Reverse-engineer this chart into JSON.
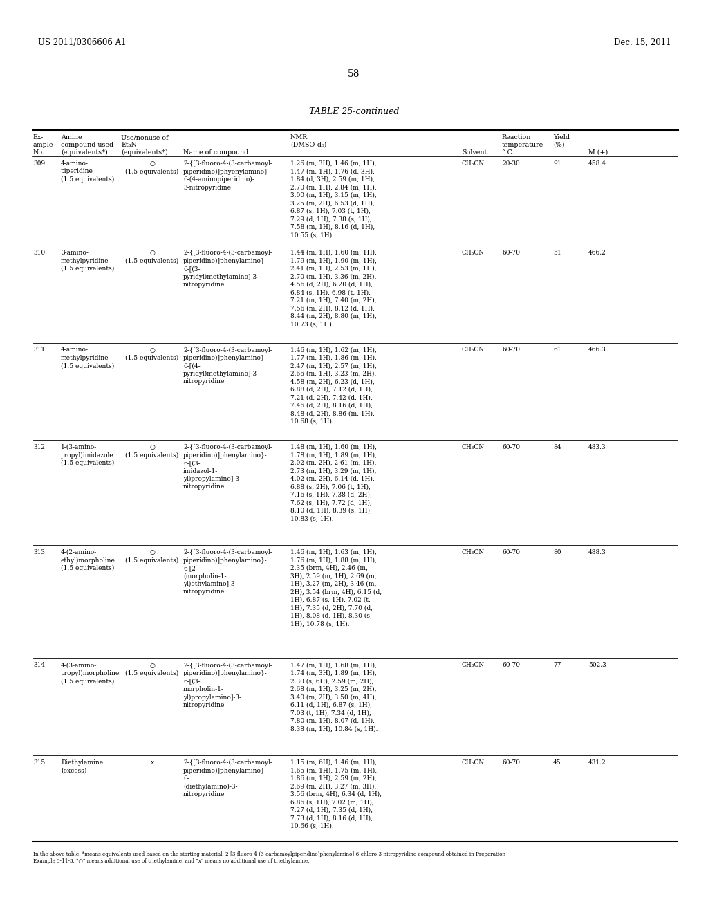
{
  "header_left": "US 2011/0306606 A1",
  "header_right": "Dec. 15, 2011",
  "page_number": "58",
  "table_title": "TABLE 25-continued",
  "rows": [
    {
      "ex": "309",
      "amine": "4-amino-\npiperidine\n(1.5 equivalents)",
      "et3n": "○\n(1.5 equivalents)",
      "name": "2-{[3-fluoro-4-(3-carbamoyl-\npiperidino)]phyenylamino}-\n6-(4-aminopiperidino)-\n3-nitropyridine",
      "nmr": "1.26 (m, 3H), 1.46 (m, 1H),\n1.47 (m, 1H), 1.76 (d, 3H),\n1.84 (d, 3H), 2.59 (m, 1H),\n2.70 (m, 1H), 2.84 (m, 1H),\n3.00 (m, 1H), 3.15 (m, 1H),\n3.25 (m, 2H), 6.53 (d, 1H),\n6.87 (s, 1H), 7.03 (t, 1H),\n7.29 (d, 1H), 7.38 (s, 1H),\n7.58 (m, 1H), 8.16 (d, 1H),\n10.55 (s, 1H).",
      "solvent": "CH₃CN",
      "temp": "20-30",
      "yield_val": "91",
      "m": "458.4"
    },
    {
      "ex": "310",
      "amine": "3-amino-\nmethylpyridine\n(1.5 equivalents)",
      "et3n": "○\n(1.5 equivalents)",
      "name": "2-{[3-fluoro-4-(3-carbamoyl-\npiperidino)]phenylamino}-\n6-[(3-\npyridyl)methylamino]-3-\nnitropyridine",
      "nmr": "1.44 (m, 1H), 1.60 (m, 1H),\n1.79 (m, 1H), 1.90 (m, 1H),\n2.41 (m, 1H), 2.53 (m, 1H),\n2.70 (m, 1H), 3.36 (m, 2H),\n4.56 (d, 2H), 6.20 (d, 1H),\n6.84 (s, 1H), 6.98 (t, 1H),\n7.21 (m, 1H), 7.40 (m, 2H),\n7.56 (m, 2H), 8.12 (d, 1H),\n8.44 (m, 2H), 8.80 (m, 1H),\n10.73 (s, 1H).",
      "solvent": "CH₃CN",
      "temp": "60-70",
      "yield_val": "51",
      "m": "466.2"
    },
    {
      "ex": "311",
      "amine": "4-amino-\nmethylpyridine\n(1.5 equivalents)",
      "et3n": "○\n(1.5 equivalents)",
      "name": "2-{[3-fluoro-4-(3-carbamoyl-\npiperidino)]phenylamino}-\n6-[(4-\npyridyl)methylamino]-3-\nnitropyridine",
      "nmr": "1.46 (m, 1H), 1.62 (m, 1H),\n1.77 (m, 1H), 1.86 (m, 1H),\n2.47 (m, 1H), 2.57 (m, 1H),\n2.66 (m, 1H), 3.23 (m, 2H),\n4.58 (m, 2H), 6.23 (d, 1H),\n6.88 (d, 2H), 7.12 (d, 1H),\n7.21 (d, 2H), 7.42 (d, 1H),\n7.46 (d, 2H), 8.16 (d, 1H),\n8.48 (d, 2H), 8.86 (m, 1H),\n10.68 (s, 1H).",
      "solvent": "CH₃CN",
      "temp": "60-70",
      "yield_val": "61",
      "m": "466.3"
    },
    {
      "ex": "312",
      "amine": "1-(3-amino-\npropyl)imidazole\n(1.5 equivalents)",
      "et3n": "○\n(1.5 equivalents)",
      "name": "2-{[3-fluoro-4-(3-carbamoyl-\npiperidino)]phenylamino}-\n6-[(3-\nimidazol-1-\nyl)propylamino]-3-\nnitropyridine",
      "nmr": "1.48 (m, 1H), 1.60 (m, 1H),\n1.78 (m, 1H), 1.89 (m, 1H),\n2.02 (m, 2H), 2.61 (m, 1H),\n2.73 (m, 1H), 3.29 (m, 1H),\n4.02 (m, 2H), 6.14 (d, 1H),\n6.88 (s, 2H), 7.06 (t, 1H),\n7.16 (s, 1H), 7.38 (d, 2H),\n7.62 (s, 1H), 7.72 (d, 1H),\n8.10 (d, 1H), 8.39 (s, 1H),\n10.83 (s, 1H).",
      "solvent": "CH₃CN",
      "temp": "60-70",
      "yield_val": "84",
      "m": "483.3"
    },
    {
      "ex": "313",
      "amine": "4-(2-amino-\nethyl)morpholine\n(1.5 equivalents)",
      "et3n": "○\n(1.5 equivalents)",
      "name": "2-{[3-fluoro-4-(3-carbamoyl-\npiperidino)]phenylamino}-\n6-[2-\n(morpholin-1-\nyl)ethylamino]-3-\nnitropyridine",
      "nmr": "1.46 (m, 1H), 1.63 (m, 1H),\n1.76 (m, 1H), 1.88 (m, 1H),\n2.35 (brm, 4H), 2.46 (m,\n3H), 2.59 (m, 1H), 2.69 (m,\n1H), 3.27 (m, 2H), 3.46 (m,\n2H), 3.54 (brm, 4H), 6.15 (d,\n1H), 6.87 (s, 1H), 7.02 (t,\n1H), 7.35 (d, 2H), 7.70 (d,\n1H), 8.08 (d, 1H), 8.30 (s,\n1H), 10.78 (s, 1H).",
      "solvent": "CH₃CN",
      "temp": "60-70",
      "yield_val": "80",
      "m": "488.3"
    },
    {
      "ex": "314",
      "amine": "4-(3-amino-\npropyl)morpholine\n(1.5 equivalents)",
      "et3n": "○\n(1.5 equivalents)",
      "name": "2-{[3-fluoro-4-(3-carbamoyl-\npiperidino)]phenylamino}-\n6-[(3-\nmorpholin-1-\nyl)propylamino]-3-\nnitropyridine",
      "nmr": "1.47 (m, 1H), 1.68 (m, 1H),\n1.74 (m, 3H), 1.89 (m, 1H),\n2.30 (s, 6H), 2.59 (m, 2H),\n2.68 (m, 1H), 3.25 (m, 2H),\n3.40 (m, 2H), 3.50 (m, 4H),\n6.11 (d, 1H), 6.87 (s, 1H),\n7.03 (t, 1H), 7.34 (d, 1H),\n7.80 (m, 1H), 8.07 (d, 1H),\n8.38 (m, 1H), 10.84 (s, 1H).",
      "solvent": "CH₃CN",
      "temp": "60-70",
      "yield_val": "77",
      "m": "502.3"
    },
    {
      "ex": "315",
      "amine": "Diethylamine\n(excess)",
      "et3n": "x",
      "name": "2-{[3-fluoro-4-(3-carbamoyl-\npiperidino)]phenylamino}-\n6-\n(diethylamino)-3-\nnitropyridine",
      "nmr": "1.15 (m, 6H), 1.46 (m, 1H),\n1.65 (m, 1H), 1.75 (m, 1H),\n1.86 (m, 1H), 2.59 (m, 2H),\n2.69 (m, 2H), 3.27 (m, 3H),\n3.56 (brm, 4H), 6.34 (d, 1H),\n6.86 (s, 1H), 7.02 (m, 1H),\n7.27 (d, 1H), 7.35 (d, 1H),\n7.73 (d, 1H), 8.16 (d, 1H),\n10.66 (s, 1H).",
      "solvent": "CH₃CN",
      "temp": "60-70",
      "yield_val": "45",
      "m": "431.2"
    }
  ],
  "footnote_line1": "In the above table, *means equivalents used based on the starting material, 2-[3-fluoro-4-(3-carbamoylpiperidino)phenylamino]-6-chloro-3-nitropyridine compound obtained in Preparation",
  "footnote_line2": "Example 3-11-3, \"○\" means additional use of triethylamine, and \"x\" means no additional use of triethylamine.",
  "bg_color": "#ffffff",
  "text_color": "#000000"
}
